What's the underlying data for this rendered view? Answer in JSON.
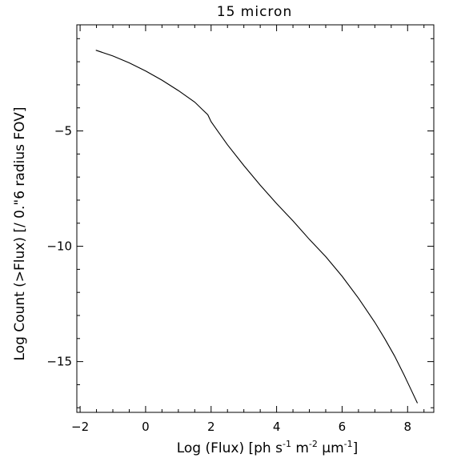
{
  "chart_data": {
    "type": "line",
    "title": "15 micron",
    "xlabel": {
      "prefix": "Log (Flux) [ph s",
      "sup1": "-1",
      "mid1": " m",
      "sup2": "-2",
      "mid2": " µm",
      "sup3": "-1",
      "suffix": "]"
    },
    "ylabel": "Log Count (>Flux) [/ 0.\"6 radius FOV]",
    "xlim": [
      -2.1,
      8.8
    ],
    "ylim": [
      -17.2,
      -0.4
    ],
    "xticks": [
      {
        "value": -2,
        "label": "−2"
      },
      {
        "value": 0,
        "label": "0"
      },
      {
        "value": 2,
        "label": "2"
      },
      {
        "value": 4,
        "label": "4"
      },
      {
        "value": 6,
        "label": "6"
      },
      {
        "value": 8,
        "label": "8"
      }
    ],
    "yticks": [
      {
        "value": -5,
        "label": "−5"
      },
      {
        "value": -10,
        "label": "−10"
      },
      {
        "value": -15,
        "label": "−15"
      }
    ],
    "series": [
      {
        "x": [
          -1.52,
          -1.0,
          -0.5,
          0.0,
          0.5,
          1.0,
          1.5,
          1.9,
          2.0,
          2.2,
          2.5,
          3.0,
          3.5,
          4.0,
          4.5,
          5.0,
          5.5,
          6.0,
          6.5,
          7.0,
          7.3,
          7.6,
          7.9,
          8.1,
          8.3
        ],
        "y": [
          -1.5,
          -1.75,
          -2.05,
          -2.4,
          -2.8,
          -3.25,
          -3.75,
          -4.3,
          -4.6,
          -5.0,
          -5.6,
          -6.5,
          -7.35,
          -8.15,
          -8.9,
          -9.7,
          -10.45,
          -11.3,
          -12.25,
          -13.3,
          -14.0,
          -14.75,
          -15.6,
          -16.2,
          -16.8
        ]
      }
    ]
  }
}
